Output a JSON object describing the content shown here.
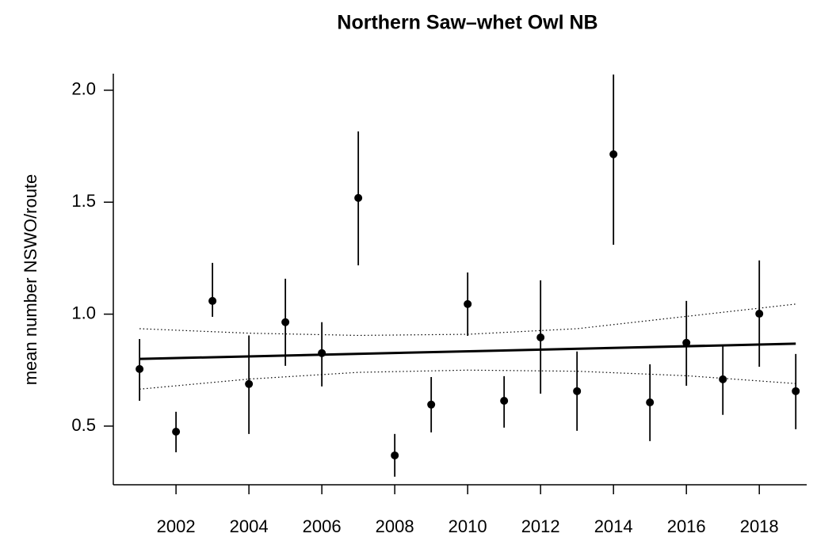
{
  "chart_data": {
    "type": "errorbar",
    "title": "Northern Saw–whet Owl NB",
    "y_label": "mean number NSWO/route",
    "x": [
      2001,
      2002,
      2003,
      2004,
      2005,
      2006,
      2007,
      2008,
      2009,
      2010,
      2011,
      2012,
      2013,
      2014,
      2015,
      2016,
      2017,
      2018,
      2019
    ],
    "values": [
      0.755,
      0.475,
      1.059,
      0.688,
      0.964,
      0.826,
      1.519,
      0.369,
      0.596,
      1.045,
      0.613,
      0.896,
      0.656,
      1.714,
      0.606,
      0.872,
      0.709,
      1.002,
      0.656
    ],
    "lower": [
      0.613,
      0.383,
      0.988,
      0.465,
      0.769,
      0.677,
      1.218,
      0.274,
      0.472,
      0.903,
      0.493,
      0.645,
      0.479,
      1.31,
      0.433,
      0.68,
      0.55,
      0.765,
      0.486
    ],
    "upper": [
      0.889,
      0.564,
      1.229,
      0.905,
      1.158,
      0.964,
      1.816,
      0.465,
      0.719,
      1.186,
      0.723,
      1.151,
      0.833,
      2.07,
      0.776,
      1.059,
      0.861,
      1.24,
      0.822
    ],
    "color": "#000000",
    "trend": {
      "x": [
        2001,
        2019
      ],
      "values": [
        0.8,
        0.868
      ]
    },
    "band": {
      "x": [
        2001,
        2004,
        2007,
        2010,
        2013,
        2016,
        2019
      ],
      "upper": [
        0.935,
        0.915,
        0.905,
        0.91,
        0.935,
        0.99,
        1.045
      ],
      "lower": [
        0.665,
        0.71,
        0.74,
        0.75,
        0.745,
        0.725,
        0.69
      ]
    },
    "xlim": [
      2000.28,
      2019.3
    ],
    "ylim": [
      0.238,
      2.074
    ],
    "xticks": [
      2002,
      2004,
      2006,
      2008,
      2010,
      2012,
      2014,
      2016,
      2018
    ],
    "yticks": [
      0.5,
      {
        "value": 1,
        "label": "1.0"
      },
      1.5,
      {
        "value": 2,
        "label": "2.0"
      }
    ],
    "grid": false
  }
}
